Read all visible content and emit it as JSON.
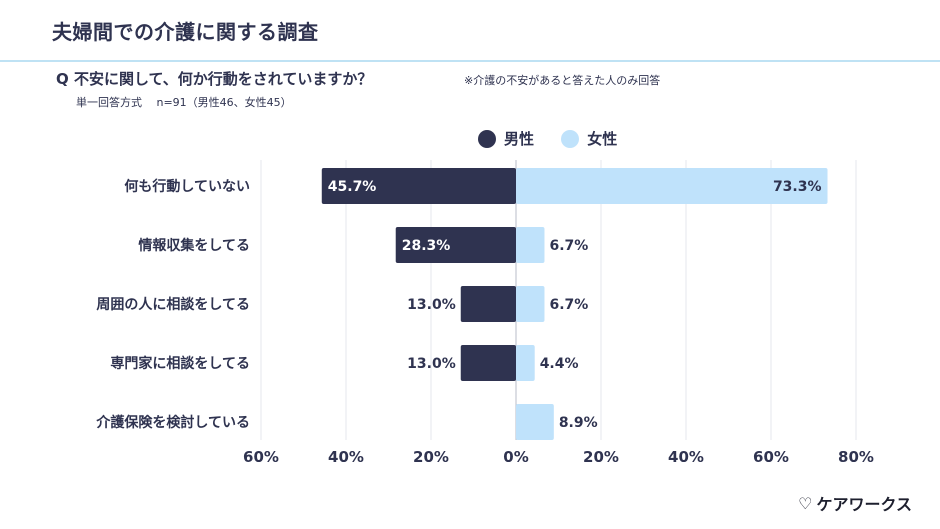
{
  "title": "夫婦間での介護に関する調査",
  "question": "Q 不安に関して、何か行動をされていますか？",
  "note": "※介護の不安があると答えた人のみ回答",
  "method": "単一回答方式　 n=91（男性46、女性45）",
  "brand": "ケアワークス",
  "colors": {
    "male": "#2f3350",
    "female": "#bfe2fb",
    "text": "#2f3350"
  },
  "chart_data": {
    "type": "bar",
    "orientation": "horizontal-diverging",
    "categories": [
      "何も行動していない",
      "情報収集をしてる",
      "周囲の人に相談をしてる",
      "専門家に相談をしてる",
      "介護保険を検討している"
    ],
    "series": [
      {
        "name": "男性",
        "values": [
          45.7,
          28.3,
          13.0,
          13.0,
          null
        ],
        "labels": [
          "45.7%",
          "28.3%",
          "13.0%",
          "13.0%",
          ""
        ]
      },
      {
        "name": "女性",
        "values": [
          73.3,
          6.7,
          6.7,
          4.4,
          8.9
        ],
        "labels": [
          "73.3%",
          "6.7%",
          "6.7%",
          "4.4%",
          "8.9%"
        ]
      }
    ],
    "xlim": [
      -60,
      80
    ],
    "ticks": [
      -60,
      -40,
      -20,
      0,
      20,
      40,
      60,
      80
    ],
    "tick_labels": [
      "60%",
      "40%",
      "20%",
      "0%",
      "20%",
      "40%",
      "60%",
      "80%"
    ],
    "grid": true,
    "legend": "top-center"
  }
}
